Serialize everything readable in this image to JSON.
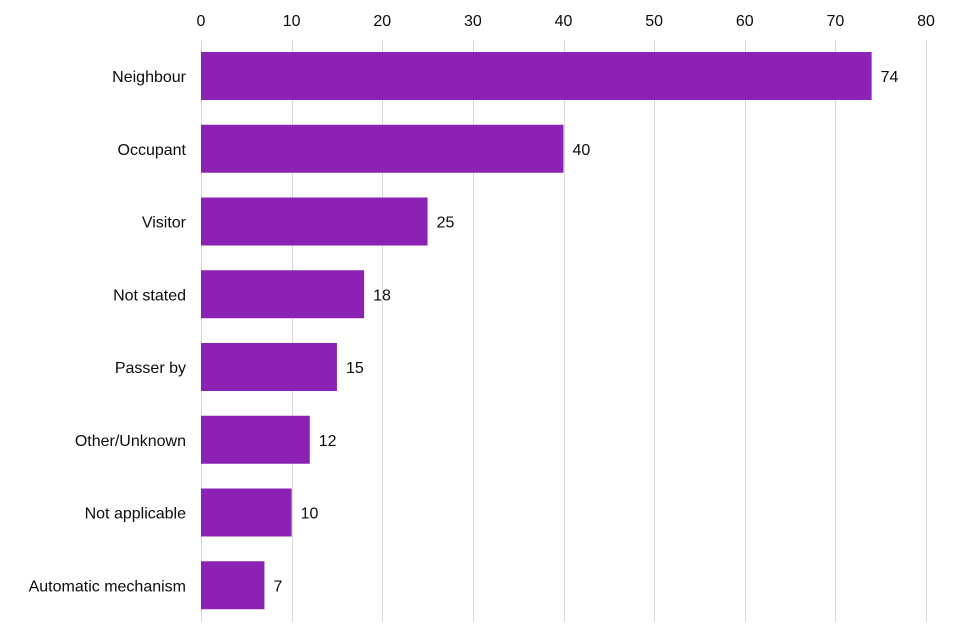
{
  "chart_data": {
    "type": "bar",
    "orientation": "horizontal",
    "title": "",
    "xlabel": "",
    "ylabel": "",
    "categories": [
      "Neighbour",
      "Occupant",
      "Visitor",
      "Not stated",
      "Passer by",
      "Other/Unknown",
      "Not applicable",
      "Automatic mechanism"
    ],
    "values": [
      74,
      40,
      25,
      18,
      15,
      12,
      10,
      7
    ],
    "xlim": [
      0,
      80
    ],
    "xticks": [
      0,
      10,
      20,
      30,
      40,
      50,
      60,
      70,
      80
    ],
    "tick_position": "top",
    "grid": true,
    "data_labels": true,
    "bar_color": "#8b22b3",
    "grid_color": "#d9d9d9",
    "text_color": "#0b0c0c"
  }
}
